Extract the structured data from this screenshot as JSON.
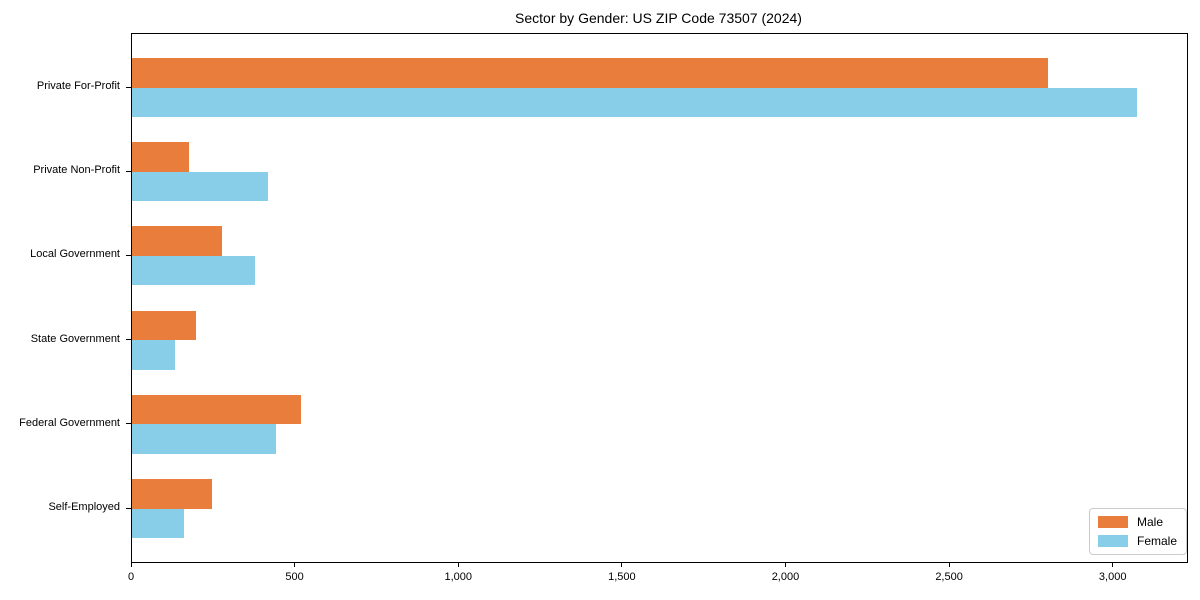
{
  "chart_data": {
    "type": "bar",
    "orientation": "horizontal",
    "title": "Sector by Gender: US ZIP Code 73507 (2024)",
    "categories": [
      "Private For-Profit",
      "Private Non-Profit",
      "Local Government",
      "State Government",
      "Federal Government",
      "Self-Employed"
    ],
    "series": [
      {
        "name": "Male",
        "color": "#E87D3C",
        "values": [
          2800,
          175,
          275,
          195,
          515,
          245
        ]
      },
      {
        "name": "Female",
        "color": "#89CEE8",
        "values": [
          3070,
          415,
          375,
          130,
          440,
          160
        ]
      }
    ],
    "xlabel": "",
    "ylabel": "",
    "xlim": [
      0,
      3224
    ],
    "xticks": [
      0,
      500,
      1000,
      1500,
      2000,
      2500,
      3000
    ],
    "xtick_labels": [
      "0",
      "500",
      "1,000",
      "1,500",
      "2,000",
      "2,500",
      "3,000"
    ],
    "grid": false,
    "legend_position": "lower right"
  },
  "legend": {
    "items": [
      {
        "label": "Male",
        "color": "#E87D3C"
      },
      {
        "label": "Female",
        "color": "#89CEE8"
      }
    ]
  }
}
